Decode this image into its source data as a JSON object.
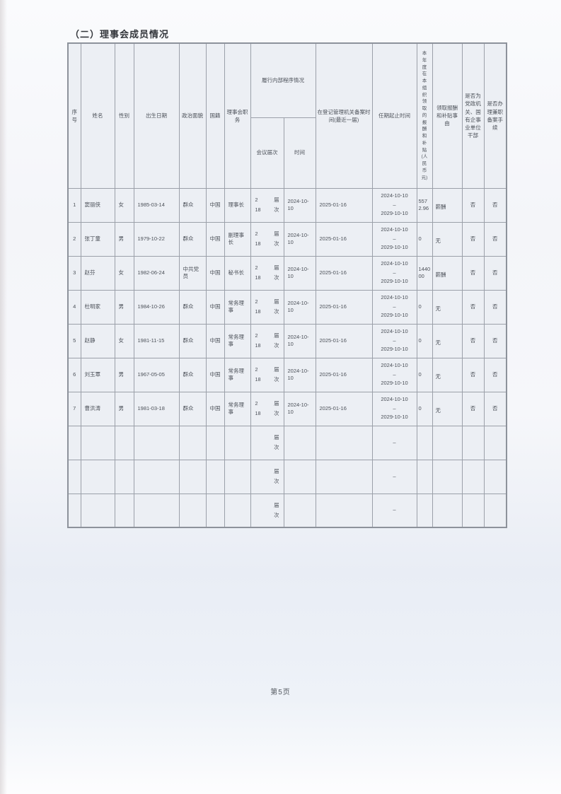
{
  "colors": {
    "paper": "#f6f7fa",
    "table-bg": "#eceff4",
    "border-strong": "#8d929b",
    "border": "#9ba0a9",
    "text": "#4b5058",
    "title": "#33363b"
  },
  "page": {
    "title": "（二）理事会成员情况",
    "footer": "第5页"
  },
  "table": {
    "headers": {
      "seq": "序号",
      "name": "姓名",
      "gender": "性别",
      "birth": "出生日期",
      "political": "政治面貌",
      "nationality": "国籍",
      "position": "理事会职务",
      "procedure_group": "履行内部程序情况",
      "session": "会议届次",
      "time": "时间",
      "registration": "在登记管理机关备案时间(最近一届)",
      "term": "任期起止时间",
      "remuneration": "本年度在本组织领取的报酬和补贴(人民币元)",
      "reason": "领取报酬和补贴事由",
      "cadre": "是否为党政机关、国有企事业单位干部",
      "parttime": "是否办理兼职备案手续"
    },
    "session_units": {
      "jie": "届",
      "ci": "次"
    },
    "rows": [
      {
        "seq": "1",
        "name": "窦丽侠",
        "gender": "女",
        "birth": "1985-03-14",
        "political": "群众",
        "nationality": "中国",
        "position": "理事长",
        "session_jie": "2",
        "session_ci": "18",
        "time": "2024-10-10",
        "registration": "2025-01-16",
        "term_start": "2024-10-10",
        "term_dash": "–",
        "term_end": "2029-10-10",
        "remuneration": "5572.96",
        "reason": "薪酬",
        "cadre": "否",
        "parttime": "否"
      },
      {
        "seq": "2",
        "name": "张丁童",
        "gender": "男",
        "birth": "1979-10-22",
        "political": "群众",
        "nationality": "中国",
        "position": "副理事长",
        "session_jie": "2",
        "session_ci": "18",
        "time": "2024-10-10",
        "registration": "2025-01-16",
        "term_start": "2024-10-10",
        "term_dash": "–",
        "term_end": "2029-10-10",
        "remuneration": "0",
        "reason": "无",
        "cadre": "否",
        "parttime": "否"
      },
      {
        "seq": "3",
        "name": "赵芬",
        "gender": "女",
        "birth": "1982-06-24",
        "political": "中共党员",
        "nationality": "中国",
        "position": "秘书长",
        "session_jie": "2",
        "session_ci": "18",
        "time": "2024-10-10",
        "registration": "2025-01-16",
        "term_start": "2024-10-10",
        "term_dash": "–",
        "term_end": "2029-10-10",
        "remuneration": "144000",
        "reason": "薪酬",
        "cadre": "否",
        "parttime": "否"
      },
      {
        "seq": "4",
        "name": "杜明家",
        "gender": "男",
        "birth": "1984-10-26",
        "political": "群众",
        "nationality": "中国",
        "position": "常务理事",
        "session_jie": "2",
        "session_ci": "18",
        "time": "2024-10-10",
        "registration": "2025-01-16",
        "term_start": "2024-10-10",
        "term_dash": "–",
        "term_end": "2029-10-10",
        "remuneration": "0",
        "reason": "无",
        "cadre": "否",
        "parttime": "否"
      },
      {
        "seq": "5",
        "name": "赵静",
        "gender": "女",
        "birth": "1981-11-15",
        "political": "群众",
        "nationality": "中国",
        "position": "常务理事",
        "session_jie": "2",
        "session_ci": "18",
        "time": "2024-10-10",
        "registration": "2025-01-16",
        "term_start": "2024-10-10",
        "term_dash": "–",
        "term_end": "2029-10-10",
        "remuneration": "0",
        "reason": "无",
        "cadre": "否",
        "parttime": "否"
      },
      {
        "seq": "6",
        "name": "刘玉覃",
        "gender": "男",
        "birth": "1967-05-05",
        "political": "群众",
        "nationality": "中国",
        "position": "常务理事",
        "session_jie": "2",
        "session_ci": "18",
        "time": "2024-10-10",
        "registration": "2025-01-16",
        "term_start": "2024-10-10",
        "term_dash": "–",
        "term_end": "2029-10-10",
        "remuneration": "0",
        "reason": "无",
        "cadre": "否",
        "parttime": "否"
      },
      {
        "seq": "7",
        "name": "曹洪涛",
        "gender": "男",
        "birth": "1981-03-18",
        "political": "群众",
        "nationality": "中国",
        "position": "常务理事",
        "session_jie": "2",
        "session_ci": "18",
        "time": "2024-10-10",
        "registration": "2025-01-16",
        "term_start": "2024-10-10",
        "term_dash": "–",
        "term_end": "2029-10-10",
        "remuneration": "0",
        "reason": "无",
        "cadre": "否",
        "parttime": "否"
      }
    ],
    "empty_rows": [
      {
        "term_dash": "–"
      },
      {
        "term_dash": "–"
      },
      {
        "term_dash": "–"
      }
    ]
  }
}
